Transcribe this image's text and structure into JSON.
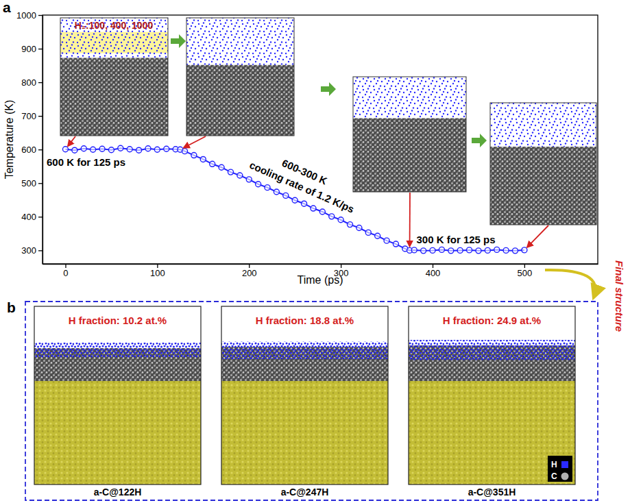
{
  "chart_data": {
    "type": "line",
    "panel_label": "a",
    "x_label": "Time (ps)",
    "y_label": "Temperature (K)",
    "xlim": [
      -25,
      580
    ],
    "ylim": [
      260,
      1000
    ],
    "xticks": [
      0,
      100,
      200,
      300,
      400,
      500
    ],
    "yticks": [
      300,
      400,
      500,
      600,
      700,
      800,
      900,
      1000
    ],
    "grid": false,
    "inset_label": "H₂:100, 400, 1000",
    "annotations": [
      "600 K for 125 ps",
      "600-300 K",
      "cooling rate of 1.2 K/ps",
      "300 K for 125 ps"
    ],
    "series": [
      {
        "color": "#2020ff",
        "marker": "circle",
        "line_style": "solid",
        "x": [
          0,
          10,
          20,
          30,
          40,
          50,
          60,
          70,
          80,
          90,
          100,
          110,
          120,
          125,
          130,
          140,
          150,
          160,
          170,
          180,
          190,
          200,
          210,
          220,
          230,
          240,
          250,
          260,
          270,
          280,
          290,
          300,
          310,
          320,
          330,
          340,
          350,
          360,
          370,
          375,
          380,
          390,
          400,
          410,
          420,
          430,
          440,
          450,
          460,
          470,
          480,
          490,
          500
        ],
        "values": [
          601,
          598,
          603,
          600,
          602,
          599,
          604,
          601,
          598,
          603,
          600,
          602,
          601,
          600,
          595,
          583,
          571,
          557,
          547,
          533,
          523,
          511,
          497,
          487,
          474,
          463,
          449,
          439,
          425,
          415,
          401,
          391,
          377,
          367,
          353,
          343,
          329,
          319,
          305,
          300,
          301,
          299,
          300,
          302,
          299,
          300,
          301,
          299,
          300,
          302,
          300,
          299,
          301
        ]
      }
    ]
  },
  "panel_b": {
    "label": "b",
    "caption": "Final structure",
    "structures": [
      {
        "h_fraction": "H fraction: 10.2 at.%",
        "name": "a-C@122H"
      },
      {
        "h_fraction": "H fraction: 18.8 at.%",
        "name": "a-C@247H"
      },
      {
        "h_fraction": "H fraction: 24.9 at.%",
        "name": "a-C@351H"
      }
    ],
    "atom_key": [
      "H",
      "C"
    ]
  }
}
